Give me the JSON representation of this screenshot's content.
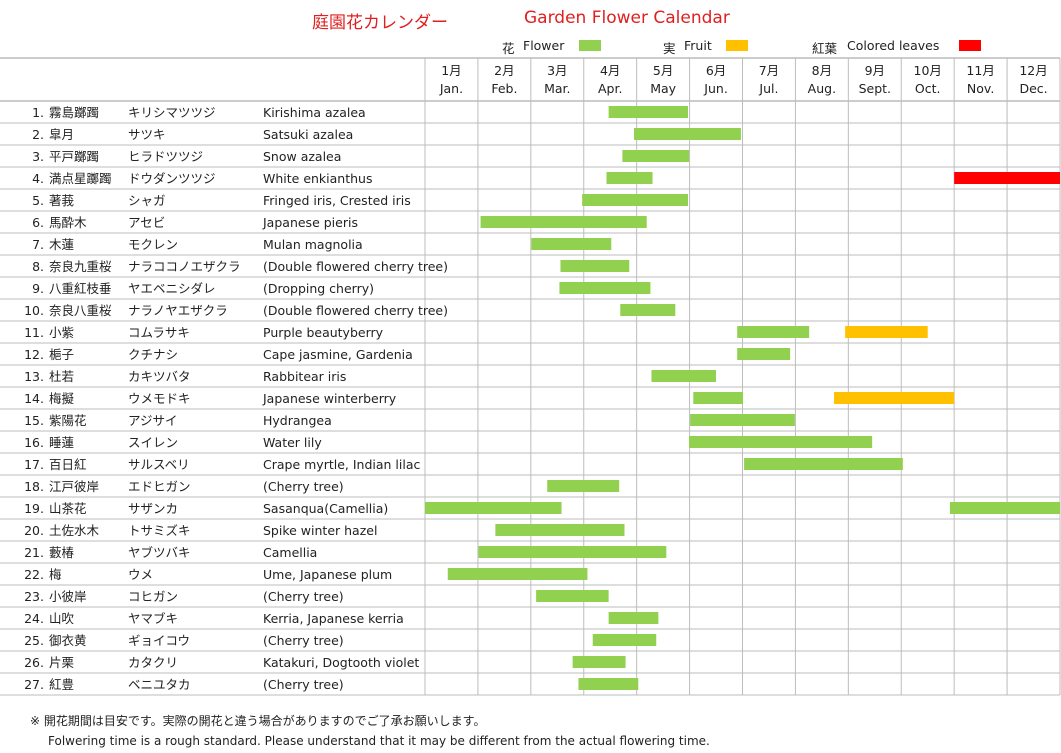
{
  "header": {
    "title_jp": "庭園花カレンダー",
    "title_en": "Garden Flower Calendar"
  },
  "legend": [
    {
      "key": "flower",
      "jp": "花",
      "en": "Flower",
      "color": "#92d050"
    },
    {
      "key": "fruit",
      "jp": "実",
      "en": "Fruit",
      "color": "#ffc000"
    },
    {
      "key": "leaves",
      "jp": "紅葉",
      "en": "Colored leaves",
      "color": "#ff0000"
    }
  ],
  "chart_data": {
    "type": "gantt",
    "months": [
      {
        "jp": "1月",
        "en": "Jan."
      },
      {
        "jp": "2月",
        "en": "Feb."
      },
      {
        "jp": "3月",
        "en": "Mar."
      },
      {
        "jp": "4月",
        "en": "Apr."
      },
      {
        "jp": "5月",
        "en": "May"
      },
      {
        "jp": "6月",
        "en": "Jun."
      },
      {
        "jp": "7月",
        "en": "Jul."
      },
      {
        "jp": "8月",
        "en": "Aug."
      },
      {
        "jp": "9月",
        "en": "Sept."
      },
      {
        "jp": "10月",
        "en": "Oct."
      },
      {
        "jp": "11月",
        "en": "Nov."
      },
      {
        "jp": "12月",
        "en": "Dec."
      }
    ],
    "rows": [
      {
        "no": "1.",
        "kanji": "霧島躑躅",
        "kana": "キリシマツツジ",
        "en": "Kirishima azalea",
        "bars": [
          {
            "type": "flower",
            "start": 3.47,
            "end": 4.97
          }
        ]
      },
      {
        "no": "2.",
        "kanji": "皐月",
        "kana": "サツキ",
        "en": "Satsuki azalea",
        "bars": [
          {
            "type": "flower",
            "start": 3.95,
            "end": 5.97
          }
        ]
      },
      {
        "no": "3.",
        "kanji": "平戸躑躅",
        "kana": "ヒラドツツジ",
        "en": "Snow azalea",
        "bars": [
          {
            "type": "flower",
            "start": 3.73,
            "end": 4.99
          }
        ]
      },
      {
        "no": "4.",
        "kanji": "満点星躑躅",
        "kana": "ドウダンツツジ",
        "en": "White enkianthus",
        "bars": [
          {
            "type": "flower",
            "start": 3.43,
            "end": 4.3
          },
          {
            "type": "leaves",
            "start": 10.0,
            "end": 12.0
          }
        ]
      },
      {
        "no": "5.",
        "kanji": "著莪",
        "kana": "シャガ",
        "en": "Fringed iris, Crested iris",
        "bars": [
          {
            "type": "flower",
            "start": 2.97,
            "end": 4.97
          }
        ]
      },
      {
        "no": "6.",
        "kanji": "馬酔木",
        "kana": "アセビ",
        "en": "Japanese pieris",
        "bars": [
          {
            "type": "flower",
            "start": 1.05,
            "end": 4.19
          }
        ]
      },
      {
        "no": "7.",
        "kanji": "木蓮",
        "kana": "モクレン",
        "en": "Mulan magnolia",
        "bars": [
          {
            "type": "flower",
            "start": 2.01,
            "end": 3.52
          }
        ]
      },
      {
        "no": "8.",
        "kanji": "奈良九重桜",
        "kana": "ナラココノエザクラ",
        "en": "(Double flowered cherry tree)",
        "bars": [
          {
            "type": "flower",
            "start": 2.56,
            "end": 3.86
          }
        ]
      },
      {
        "no": "9.",
        "kanji": "八重紅枝垂",
        "kana": "ヤエベニシダレ",
        "en": "(Dropping cherry)",
        "bars": [
          {
            "type": "flower",
            "start": 2.54,
            "end": 4.26
          }
        ]
      },
      {
        "no": "10.",
        "kanji": "奈良八重桜",
        "kana": "ナラノヤエザクラ",
        "en": "(Double flowered cherry tree)",
        "bars": [
          {
            "type": "flower",
            "start": 3.69,
            "end": 4.73
          }
        ]
      },
      {
        "no": "11.",
        "kanji": "小紫",
        "kana": "コムラサキ",
        "en": "Purple beautyberry",
        "bars": [
          {
            "type": "flower",
            "start": 5.9,
            "end": 7.26
          },
          {
            "type": "fruit",
            "start": 7.94,
            "end": 9.5
          }
        ]
      },
      {
        "no": "12.",
        "kanji": "梔子",
        "kana": "クチナシ",
        "en": "Cape jasmine, Gardenia",
        "bars": [
          {
            "type": "flower",
            "start": 5.9,
            "end": 6.9
          }
        ]
      },
      {
        "no": "13.",
        "kanji": "杜若",
        "kana": "カキツバタ",
        "en": "Rabbitear iris",
        "bars": [
          {
            "type": "flower",
            "start": 4.28,
            "end": 5.5
          }
        ]
      },
      {
        "no": "14.",
        "kanji": "梅擬",
        "kana": "ウメモドキ",
        "en": "Japanese winterberry",
        "bars": [
          {
            "type": "flower",
            "start": 5.07,
            "end": 6.01
          },
          {
            "type": "fruit",
            "start": 7.73,
            "end": 10.0
          }
        ]
      },
      {
        "no": "15.",
        "kanji": "紫陽花",
        "kana": "アジサイ",
        "en": "Hydrangea",
        "bars": [
          {
            "type": "flower",
            "start": 5.01,
            "end": 6.99
          }
        ]
      },
      {
        "no": "16.",
        "kanji": "睡蓮",
        "kana": "スイレン",
        "en": "Water lily",
        "bars": [
          {
            "type": "flower",
            "start": 4.99,
            "end": 8.45
          }
        ]
      },
      {
        "no": "17.",
        "kanji": "百日紅",
        "kana": "サルスベリ",
        "en": "Crape myrtle, Indian lilac",
        "bars": [
          {
            "type": "flower",
            "start": 6.03,
            "end": 9.03
          }
        ]
      },
      {
        "no": "18.",
        "kanji": "江戸彼岸",
        "kana": "エドヒガン",
        "en": "(Cherry tree)",
        "bars": [
          {
            "type": "flower",
            "start": 2.31,
            "end": 3.67
          }
        ]
      },
      {
        "no": "19.",
        "kanji": "山茶花",
        "kana": "サザンカ",
        "en": "Sasanqua(Camellia)",
        "bars": [
          {
            "type": "flower",
            "start": 0.0,
            "end": 2.58
          },
          {
            "type": "flower",
            "start": 9.92,
            "end": 12.0
          }
        ]
      },
      {
        "no": "20.",
        "kanji": "土佐水木",
        "kana": "トサミズキ",
        "en": "Spike winter hazel",
        "bars": [
          {
            "type": "flower",
            "start": 1.33,
            "end": 3.77
          }
        ]
      },
      {
        "no": "21.",
        "kanji": "藪椿",
        "kana": "ヤブツバキ",
        "en": "Camellia",
        "bars": [
          {
            "type": "flower",
            "start": 1.01,
            "end": 4.56
          }
        ]
      },
      {
        "no": "22.",
        "kanji": "梅",
        "kana": "ウメ",
        "en": "Ume, Japanese plum",
        "bars": [
          {
            "type": "flower",
            "start": 0.43,
            "end": 3.07
          }
        ]
      },
      {
        "no": "23.",
        "kanji": "小彼岸",
        "kana": "コヒガン",
        "en": "(Cherry tree)",
        "bars": [
          {
            "type": "flower",
            "start": 2.1,
            "end": 3.47
          }
        ]
      },
      {
        "no": "24.",
        "kanji": "山吹",
        "kana": "ヤマブキ",
        "en": "Kerria, Japanese kerria",
        "bars": [
          {
            "type": "flower",
            "start": 3.47,
            "end": 4.41
          }
        ]
      },
      {
        "no": "25.",
        "kanji": "御衣黄",
        "kana": "ギョイコウ",
        "en": "(Cherry tree)",
        "bars": [
          {
            "type": "flower",
            "start": 3.17,
            "end": 4.37
          }
        ]
      },
      {
        "no": "26.",
        "kanji": "片栗",
        "kana": "カタクリ",
        "en": "Katakuri, Dogtooth violet",
        "bars": [
          {
            "type": "flower",
            "start": 2.79,
            "end": 3.79
          }
        ]
      },
      {
        "no": "27.",
        "kanji": "紅豊",
        "kana": "ベニユタカ",
        "en": "(Cherry tree)",
        "bars": [
          {
            "type": "flower",
            "start": 2.9,
            "end": 4.03
          }
        ]
      }
    ]
  },
  "notes": {
    "jp": "※ 開花期間は目安です。実際の開花と違う場合がありますのでご了承お願いします。",
    "en": "Folwering time is a rough standard. Please understand that it may be different from the actual flowering time."
  }
}
